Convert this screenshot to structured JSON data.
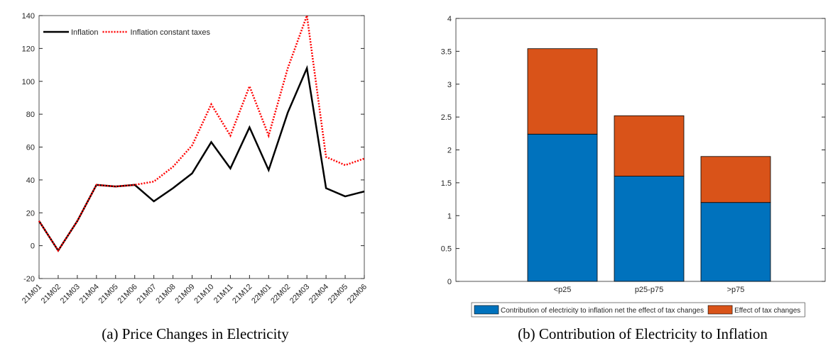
{
  "chart_data": [
    {
      "type": "line",
      "caption": "(a) Price Changes in Electricity",
      "categories": [
        "21M01",
        "21M02",
        "21M03",
        "21M04",
        "21M05",
        "21M06",
        "21M07",
        "21M08",
        "21M09",
        "21M10",
        "21M11",
        "21M12",
        "22M01",
        "22M02",
        "22M03",
        "22M04",
        "22M05",
        "22M06"
      ],
      "series": [
        {
          "name": "Inflation",
          "color": "#000000",
          "values": [
            15,
            -3,
            15,
            37,
            36,
            37,
            27,
            35,
            44,
            63,
            47,
            72,
            46,
            81,
            108,
            35,
            30,
            33
          ]
        },
        {
          "name": "Inflation constant taxes",
          "color": "#ff0000",
          "values": [
            15,
            -3,
            15,
            37,
            36,
            37,
            39,
            48,
            61,
            86,
            67,
            97,
            67,
            108,
            140,
            54,
            49,
            53
          ]
        }
      ],
      "ylim": [
        -20,
        140
      ],
      "yticks": [
        -20,
        0,
        20,
        40,
        60,
        80,
        100,
        120,
        140
      ],
      "legend": "top-left"
    },
    {
      "type": "stacked-bar",
      "caption": "(b) Contribution of Electricity to Inflation",
      "categories": [
        "<p25",
        "p25-p75",
        ">p75"
      ],
      "series": [
        {
          "name": "Contribution of electricity to inflation net the effect of tax changes",
          "color": "#0072bd",
          "values": [
            2.24,
            1.6,
            1.2
          ]
        },
        {
          "name": "Effect of tax changes",
          "color": "#d95319",
          "values": [
            1.3,
            0.92,
            0.7
          ]
        }
      ],
      "ylim": [
        0,
        4
      ],
      "yticks": [
        0,
        0.5,
        1,
        1.5,
        2,
        2.5,
        3,
        3.5,
        4
      ],
      "legend": "bottom"
    }
  ]
}
